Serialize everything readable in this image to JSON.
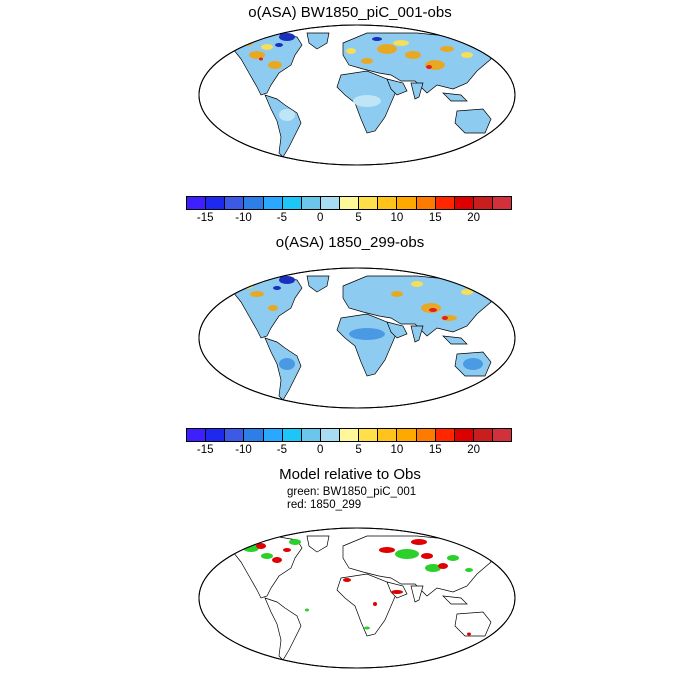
{
  "panels": [
    {
      "title": "o(ASA) BW1850_piC_001-obs"
    },
    {
      "title": "o(ASA) 1850_299-obs"
    },
    {
      "title": "Model relative to Obs",
      "legend": [
        "green: BW1850_piC_001",
        "red: 1850_299"
      ]
    }
  ],
  "colorbar": {
    "ticks": [
      "-15",
      "-10",
      "-5",
      "0",
      "5",
      "10",
      "15",
      "20"
    ],
    "colors": [
      "#3d1fff",
      "#1e28ee",
      "#3d5ae6",
      "#2e7ee8",
      "#2aa8ff",
      "#1ec6f8",
      "#6cc6ec",
      "#a8dcf2",
      "#fff89a",
      "#ffe04a",
      "#ffc41c",
      "#ffa800",
      "#ff7a00",
      "#ff2600",
      "#dd0000",
      "#c81e1e",
      "#d2303a"
    ]
  },
  "colors": {
    "land_fill": "#8ecbf0",
    "warm": "#f7a400",
    "cold": "#1b2fbf",
    "green": "#2bd02b",
    "red": "#e00000"
  }
}
